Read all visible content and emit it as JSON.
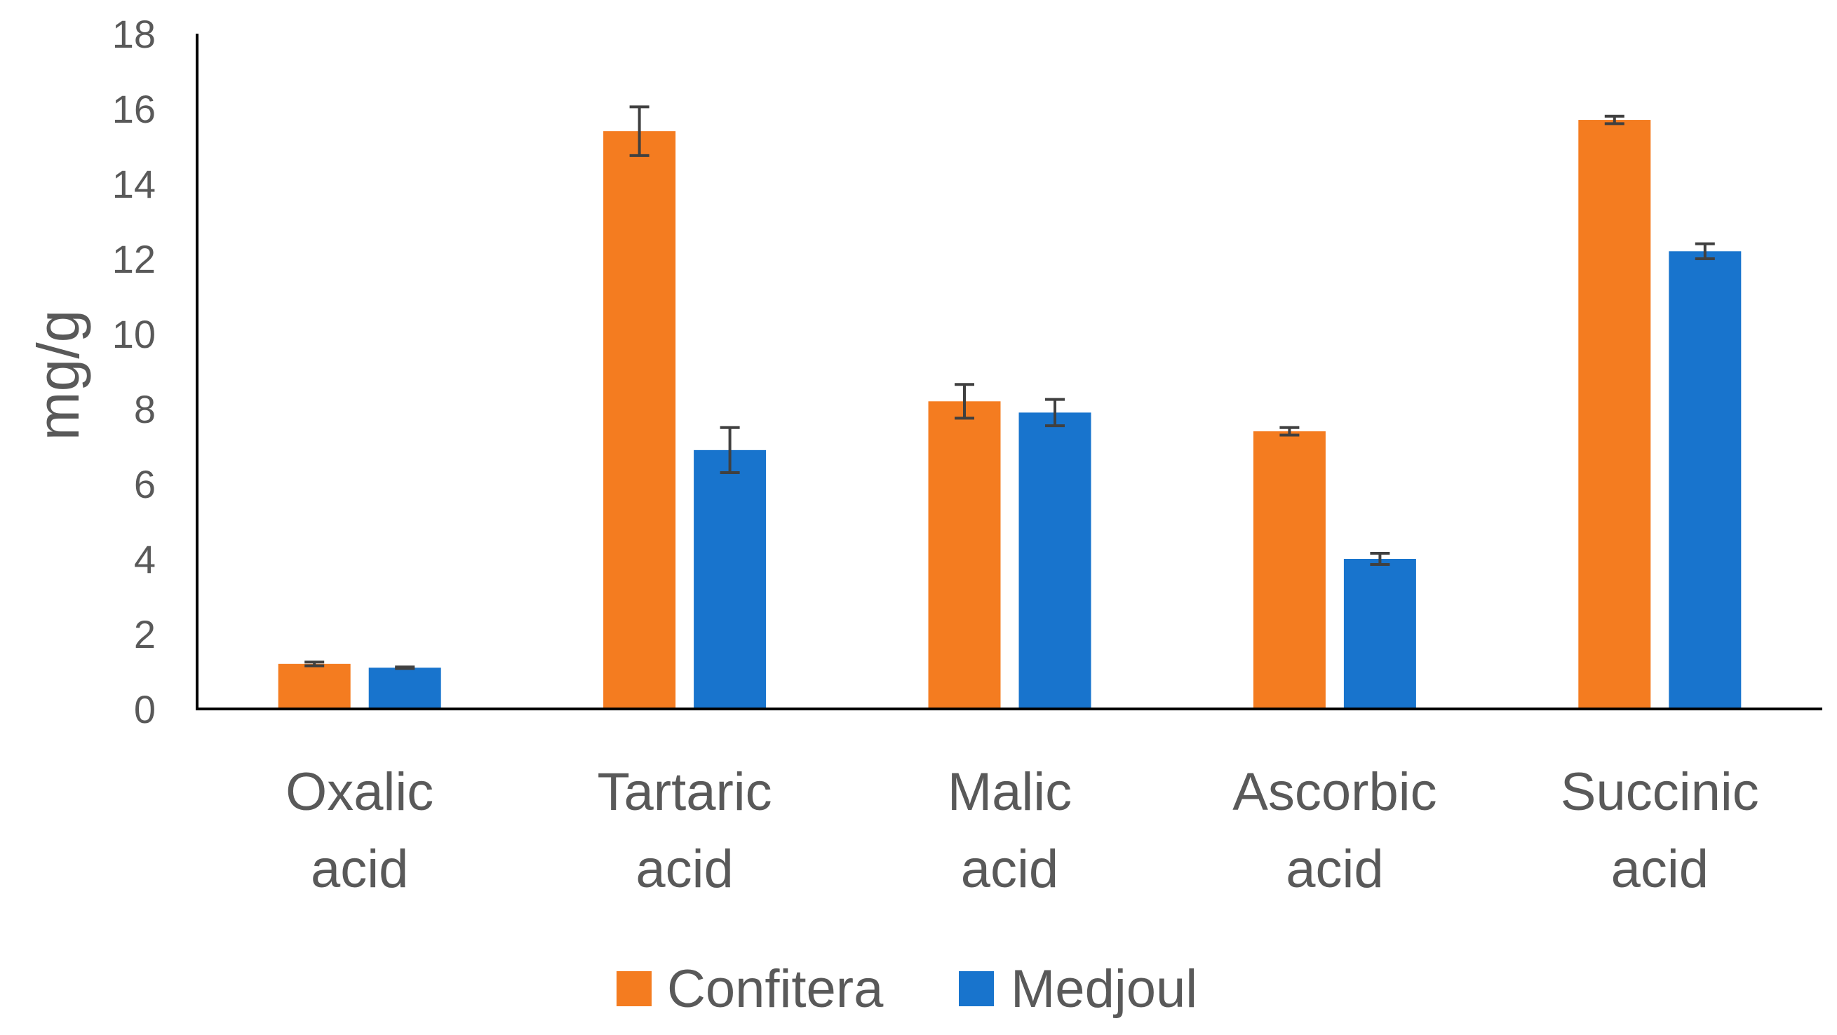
{
  "chart_data": {
    "type": "bar",
    "title": "",
    "xlabel": "",
    "ylabel": "mg/g",
    "ylim": [
      0,
      18
    ],
    "yticks": [
      0,
      2,
      4,
      6,
      8,
      10,
      12,
      14,
      16,
      18
    ],
    "grid": false,
    "legend_position": "bottom",
    "categories": [
      [
        "Oxalic",
        "acid"
      ],
      [
        "Tartaric",
        "acid"
      ],
      [
        "Malic",
        "acid"
      ],
      [
        "Ascorbic",
        "acid"
      ],
      [
        "Succinic",
        "acid"
      ]
    ],
    "series": [
      {
        "name": "Confitera",
        "color": "#F47C20",
        "values": [
          1.2,
          15.4,
          8.2,
          7.4,
          15.7
        ],
        "errors": [
          0.05,
          0.65,
          0.45,
          0.1,
          0.1
        ]
      },
      {
        "name": "Medjoul",
        "color": "#1874CD",
        "values": [
          1.1,
          6.9,
          7.9,
          4.0,
          12.2
        ],
        "errors": [
          0.02,
          0.6,
          0.35,
          0.15,
          0.2
        ]
      }
    ],
    "error_bar_color": "#404040"
  }
}
